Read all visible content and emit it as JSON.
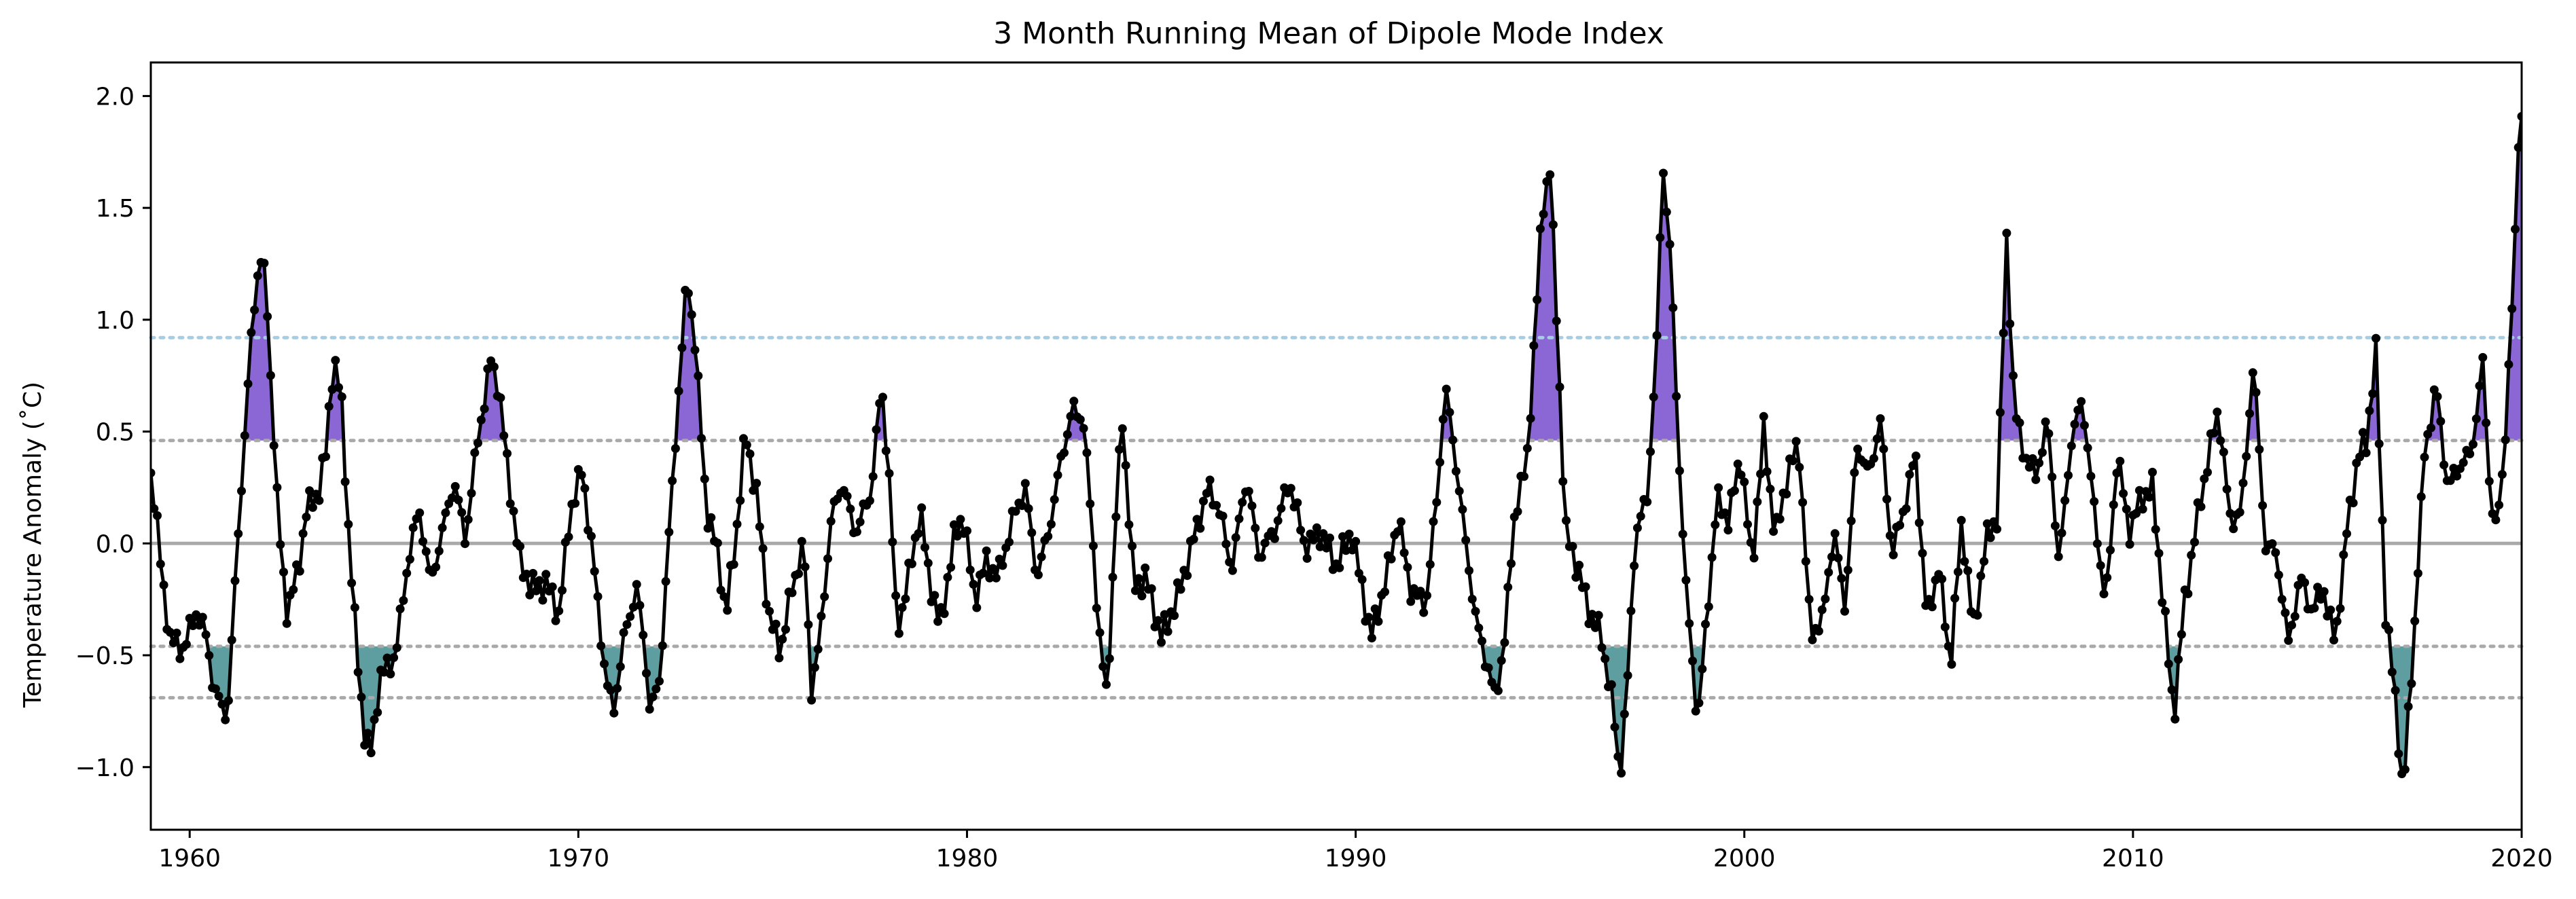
{
  "chart_data": {
    "type": "line",
    "title": "3 Month Running Mean of Dipole Mode Index",
    "xlabel": "",
    "ylabel": "Temperature Anomaly (˚C)",
    "xlim": [
      1959.0,
      2020.0
    ],
    "ylim": [
      -1.28,
      2.15
    ],
    "x_ticks": [
      1960,
      1970,
      1980,
      1990,
      2000,
      2010,
      2020
    ],
    "y_ticks": [
      -1.0,
      -0.5,
      0.0,
      0.5,
      1.0,
      1.5,
      2.0
    ],
    "y_tick_labels": [
      "−1.0",
      "−0.5",
      "0.0",
      "0.5",
      "1.0",
      "1.5",
      "2.0"
    ],
    "grid": false,
    "legend": "none",
    "reference_lines": [
      {
        "y": 0.0,
        "style": "solid",
        "color": "#a9a9a9"
      },
      {
        "y": 0.46,
        "style": "dotted",
        "color": "#a9a9a9"
      },
      {
        "y": -0.46,
        "style": "dotted",
        "color": "#a9a9a9"
      },
      {
        "y": 0.92,
        "style": "dotted",
        "color": "#a6cee3"
      },
      {
        "y": -0.69,
        "style": "dotted",
        "color": "#a9a9a9"
      }
    ],
    "positive_fill": {
      "threshold": 0.46,
      "color": "#8b67d6"
    },
    "negative_fill": {
      "threshold": -0.46,
      "color": "#5f9ea0"
    },
    "series_color": "#000000",
    "anchors": [
      [
        1959.0,
        0.3
      ],
      [
        1959.1,
        0.2
      ],
      [
        1959.3,
        -0.18
      ],
      [
        1959.5,
        -0.42
      ],
      [
        1959.8,
        -0.48
      ],
      [
        1960.2,
        -0.3
      ],
      [
        1960.4,
        -0.4
      ],
      [
        1960.6,
        -0.62
      ],
      [
        1960.9,
        -0.78
      ],
      [
        1961.0,
        -0.68
      ],
      [
        1961.2,
        -0.1
      ],
      [
        1961.4,
        0.45
      ],
      [
        1961.6,
        0.95
      ],
      [
        1961.8,
        1.3
      ],
      [
        1961.95,
        1.18
      ],
      [
        1962.1,
        0.7
      ],
      [
        1962.3,
        0.05
      ],
      [
        1962.5,
        -0.3
      ],
      [
        1962.8,
        -0.12
      ],
      [
        1963.0,
        0.15
      ],
      [
        1963.3,
        0.22
      ],
      [
        1963.5,
        0.4
      ],
      [
        1963.7,
        0.83
      ],
      [
        1963.9,
        0.65
      ],
      [
        1964.1,
        0.02
      ],
      [
        1964.3,
        -0.48
      ],
      [
        1964.5,
        -0.85
      ],
      [
        1964.65,
        -0.95
      ],
      [
        1964.9,
        -0.6
      ],
      [
        1965.3,
        -0.5
      ],
      [
        1965.6,
        -0.1
      ],
      [
        1965.9,
        0.16
      ],
      [
        1966.2,
        -0.18
      ],
      [
        1966.5,
        0.05
      ],
      [
        1966.8,
        0.28
      ],
      [
        1967.1,
        0.02
      ],
      [
        1967.4,
        0.45
      ],
      [
        1967.75,
        0.82
      ],
      [
        1967.95,
        0.7
      ],
      [
        1968.2,
        0.3
      ],
      [
        1968.5,
        -0.08
      ],
      [
        1968.8,
        -0.2
      ],
      [
        1969.2,
        -0.18
      ],
      [
        1969.5,
        -0.32
      ],
      [
        1969.8,
        0.15
      ],
      [
        1970.1,
        0.33
      ],
      [
        1970.4,
        -0.1
      ],
      [
        1970.7,
        -0.6
      ],
      [
        1970.9,
        -0.75
      ],
      [
        1971.2,
        -0.4
      ],
      [
        1971.5,
        -0.2
      ],
      [
        1971.7,
        -0.45
      ],
      [
        1971.85,
        -0.76
      ],
      [
        1972.1,
        -0.6
      ],
      [
        1972.3,
        -0.05
      ],
      [
        1972.55,
        0.6
      ],
      [
        1972.8,
        1.2
      ],
      [
        1973.0,
        0.9
      ],
      [
        1973.3,
        0.15
      ],
      [
        1973.6,
        -0.05
      ],
      [
        1973.8,
        -0.33
      ],
      [
        1974.1,
        0.1
      ],
      [
        1974.3,
        0.5
      ],
      [
        1974.6,
        0.2
      ],
      [
        1974.9,
        -0.32
      ],
      [
        1975.2,
        -0.48
      ],
      [
        1975.5,
        -0.2
      ],
      [
        1975.8,
        0.0
      ],
      [
        1976.0,
        -0.65
      ],
      [
        1976.2,
        -0.45
      ],
      [
        1976.5,
        0.1
      ],
      [
        1976.8,
        0.28
      ],
      [
        1977.1,
        0.05
      ],
      [
        1977.5,
        0.2
      ],
      [
        1977.8,
        0.7
      ],
      [
        1978.0,
        0.3
      ],
      [
        1978.2,
        -0.4
      ],
      [
        1978.5,
        -0.15
      ],
      [
        1978.8,
        0.15
      ],
      [
        1979.0,
        -0.12
      ],
      [
        1979.3,
        -0.38
      ],
      [
        1979.7,
        0.05
      ],
      [
        1979.9,
        0.12
      ],
      [
        1980.2,
        -0.25
      ],
      [
        1980.5,
        -0.08
      ],
      [
        1980.8,
        -0.15
      ],
      [
        1981.2,
        0.12
      ],
      [
        1981.5,
        0.25
      ],
      [
        1981.8,
        -0.15
      ],
      [
        1982.1,
        0.05
      ],
      [
        1982.4,
        0.35
      ],
      [
        1982.7,
        0.6
      ],
      [
        1983.0,
        0.55
      ],
      [
        1983.2,
        0.1
      ],
      [
        1983.4,
        -0.4
      ],
      [
        1983.6,
        -0.7
      ],
      [
        1983.85,
        0.2
      ],
      [
        1984.0,
        0.55
      ],
      [
        1984.3,
        -0.2
      ],
      [
        1984.6,
        -0.15
      ],
      [
        1985.0,
        -0.42
      ],
      [
        1985.4,
        -0.25
      ],
      [
        1985.8,
        0.0
      ],
      [
        1986.2,
        0.25
      ],
      [
        1986.5,
        0.15
      ],
      [
        1986.8,
        -0.12
      ],
      [
        1987.2,
        0.3
      ],
      [
        1987.5,
        -0.05
      ],
      [
        1987.9,
        0.05
      ],
      [
        1988.3,
        0.28
      ],
      [
        1988.7,
        -0.02
      ],
      [
        1989.1,
        0.05
      ],
      [
        1989.5,
        -0.1
      ],
      [
        1989.9,
        0.05
      ],
      [
        1990.4,
        -0.42
      ],
      [
        1990.8,
        -0.15
      ],
      [
        1991.1,
        0.12
      ],
      [
        1991.4,
        -0.2
      ],
      [
        1991.8,
        -0.28
      ],
      [
        1992.1,
        0.22
      ],
      [
        1992.3,
        0.7
      ],
      [
        1992.5,
        0.47
      ],
      [
        1992.8,
        0.05
      ],
      [
        1993.1,
        -0.35
      ],
      [
        1993.4,
        -0.55
      ],
      [
        1993.6,
        -0.7
      ],
      [
        1993.85,
        -0.4
      ],
      [
        1994.1,
        0.15
      ],
      [
        1994.4,
        0.35
      ],
      [
        1994.6,
        0.9
      ],
      [
        1994.8,
        1.5
      ],
      [
        1995.0,
        1.68
      ],
      [
        1995.2,
        0.9
      ],
      [
        1995.4,
        0.05
      ],
      [
        1995.7,
        -0.1
      ],
      [
        1996.0,
        -0.3
      ],
      [
        1996.3,
        -0.4
      ],
      [
        1996.6,
        -0.7
      ],
      [
        1996.8,
        -1.05
      ],
      [
        1997.0,
        -0.6
      ],
      [
        1997.2,
        0.05
      ],
      [
        1997.5,
        0.2
      ],
      [
        1997.75,
        0.9
      ],
      [
        1997.9,
        1.71
      ],
      [
        1998.1,
        1.3
      ],
      [
        1998.3,
        0.45
      ],
      [
        1998.5,
        -0.2
      ],
      [
        1998.8,
        -0.8
      ],
      [
        1999.0,
        -0.4
      ],
      [
        1999.3,
        0.2
      ],
      [
        1999.6,
        0.1
      ],
      [
        1999.9,
        0.4
      ],
      [
        2000.2,
        -0.1
      ],
      [
        2000.5,
        0.5
      ],
      [
        2000.8,
        0.02
      ],
      [
        2001.1,
        0.3
      ],
      [
        2001.4,
        0.45
      ],
      [
        2001.7,
        -0.4
      ],
      [
        2002.0,
        -0.35
      ],
      [
        2002.3,
        0.05
      ],
      [
        2002.6,
        -0.28
      ],
      [
        2002.9,
        0.45
      ],
      [
        2003.2,
        0.3
      ],
      [
        2003.5,
        0.55
      ],
      [
        2003.8,
        -0.05
      ],
      [
        2004.1,
        0.15
      ],
      [
        2004.4,
        0.4
      ],
      [
        2004.7,
        -0.35
      ],
      [
        2005.0,
        -0.1
      ],
      [
        2005.3,
        -0.55
      ],
      [
        2005.6,
        0.1
      ],
      [
        2005.9,
        -0.4
      ],
      [
        2006.2,
        0.0
      ],
      [
        2006.5,
        0.12
      ],
      [
        2006.75,
        1.36
      ],
      [
        2006.95,
        0.6
      ],
      [
        2007.2,
        0.4
      ],
      [
        2007.5,
        0.3
      ],
      [
        2007.8,
        0.55
      ],
      [
        2008.1,
        -0.1
      ],
      [
        2008.4,
        0.45
      ],
      [
        2008.7,
        0.65
      ],
      [
        2009.0,
        0.15
      ],
      [
        2009.3,
        -0.28
      ],
      [
        2009.6,
        0.4
      ],
      [
        2009.9,
        0.05
      ],
      [
        2010.2,
        0.2
      ],
      [
        2010.5,
        0.25
      ],
      [
        2010.8,
        -0.3
      ],
      [
        2011.05,
        -0.78
      ],
      [
        2011.3,
        -0.3
      ],
      [
        2011.6,
        0.05
      ],
      [
        2011.9,
        0.35
      ],
      [
        2012.2,
        0.6
      ],
      [
        2012.5,
        0.1
      ],
      [
        2012.8,
        0.15
      ],
      [
        2013.1,
        0.82
      ],
      [
        2013.4,
        0.0
      ],
      [
        2013.7,
        -0.05
      ],
      [
        2014.0,
        -0.45
      ],
      [
        2014.3,
        -0.15
      ],
      [
        2014.6,
        -0.3
      ],
      [
        2014.9,
        -0.2
      ],
      [
        2015.2,
        -0.45
      ],
      [
        2015.5,
        0.05
      ],
      [
        2015.8,
        0.4
      ],
      [
        2016.0,
        0.45
      ],
      [
        2016.25,
        0.85
      ],
      [
        2016.5,
        -0.3
      ],
      [
        2016.75,
        -0.7
      ],
      [
        2016.95,
        -1.12
      ],
      [
        2017.2,
        -0.5
      ],
      [
        2017.5,
        0.4
      ],
      [
        2017.8,
        0.7
      ],
      [
        2018.1,
        0.25
      ],
      [
        2018.4,
        0.35
      ],
      [
        2018.7,
        0.4
      ],
      [
        2019.0,
        0.8
      ],
      [
        2019.2,
        0.2
      ],
      [
        2019.35,
        0.05
      ],
      [
        2019.55,
        0.4
      ],
      [
        2019.8,
        1.2
      ],
      [
        2019.95,
        2.0
      ],
      [
        2020.0,
        1.9
      ]
    ]
  }
}
